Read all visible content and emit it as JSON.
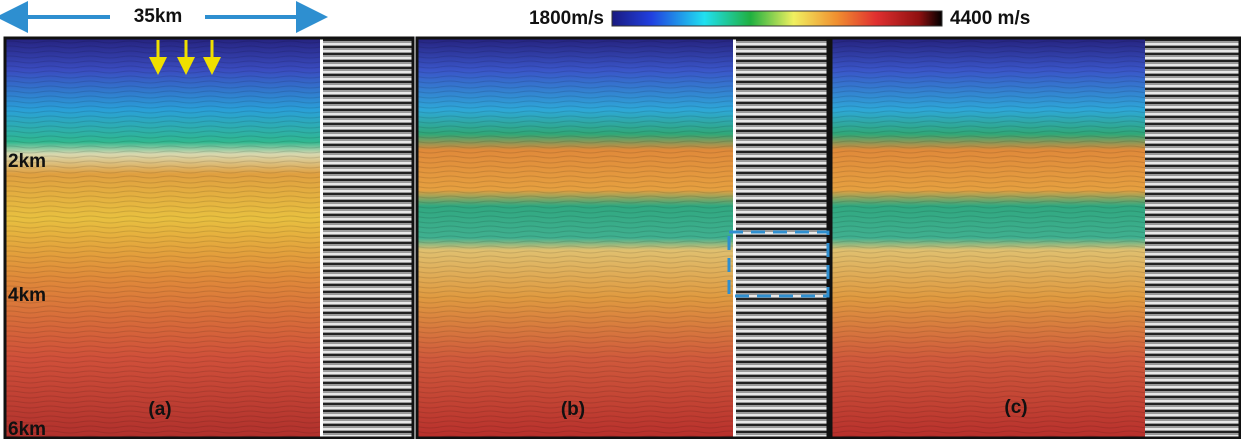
{
  "scale_bar": {
    "label": "35km"
  },
  "colorbar": {
    "min_label": "1800m/s",
    "max_label": "4400 m/s"
  },
  "depth_labels": [
    "2km",
    "4km",
    "6km"
  ],
  "panels": [
    {
      "label": "(a)"
    },
    {
      "label": "(b)"
    },
    {
      "label": "(c)"
    }
  ]
}
